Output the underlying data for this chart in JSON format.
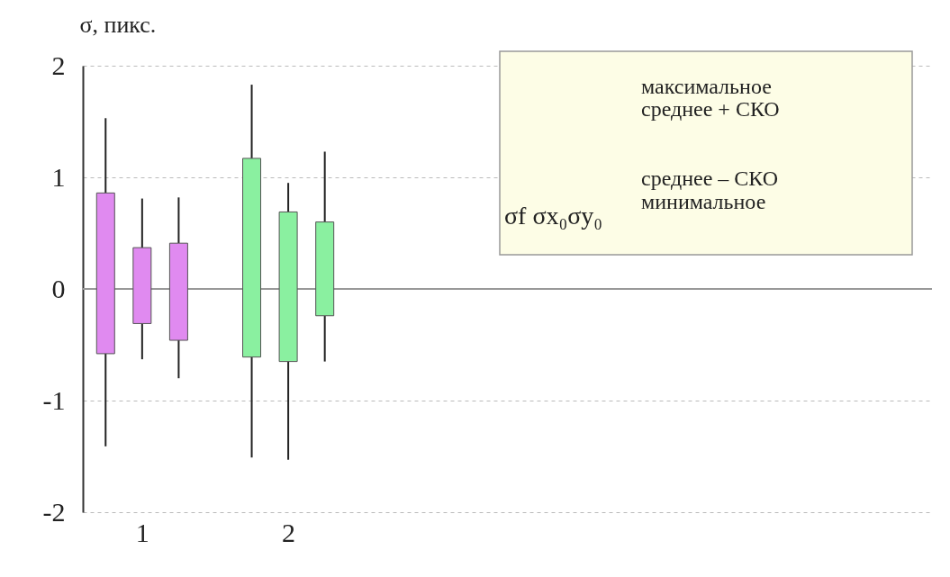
{
  "chart_data": {
    "type": "candlestick",
    "ylabel": "σ, пикс.",
    "categories": [
      null,
      "1",
      null,
      null,
      null,
      "2",
      null
    ],
    "ohlc": [
      [
        -0.58,
        1.53,
        -1.41,
        0.86
      ],
      [
        -0.31,
        0.81,
        -0.63,
        0.37
      ],
      [
        -0.46,
        0.82,
        -0.8,
        0.41
      ],
      null,
      [
        -0.61,
        1.83,
        -1.51,
        1.17
      ],
      [
        -0.65,
        0.95,
        -1.53,
        0.69
      ],
      [
        -0.24,
        1.23,
        -0.65,
        0.6
      ]
    ],
    "colors": [
      "#e08af0",
      "#e08af0",
      "#e08af0",
      null,
      "#8af0a0",
      "#8af0a0",
      "#8af0a0"
    ],
    "ylim": [
      -2,
      2
    ],
    "yticks": [
      -2,
      -1,
      0,
      1,
      2
    ],
    "grid": "y",
    "ref_lines": [
      {
        "axis": "y",
        "value": 0,
        "color": "#999999"
      }
    ],
    "annotations": [
      "максимальное",
      "среднее + СКО",
      "среднее – СКО",
      "минимальное",
      "σf σx₀σy₀"
    ]
  }
}
